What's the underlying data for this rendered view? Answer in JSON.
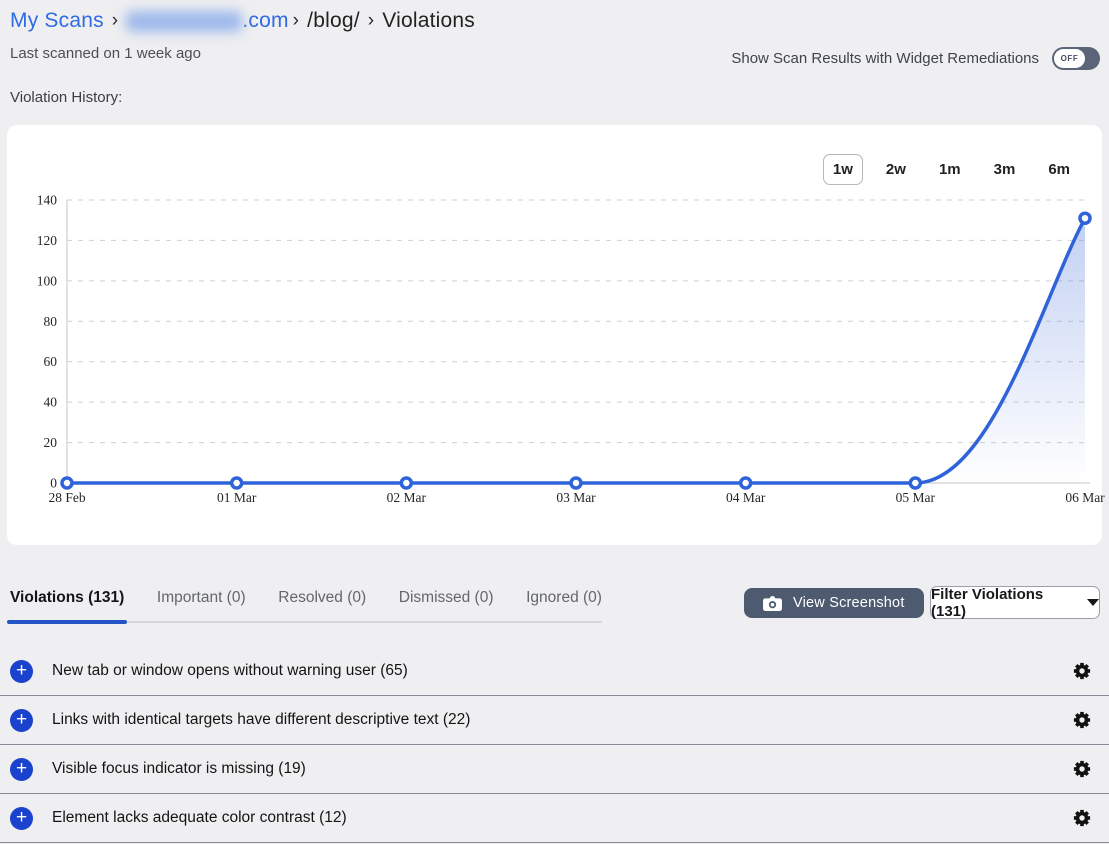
{
  "breadcrumb": {
    "root": "My Scans",
    "separator": "›",
    "domain_suffix": ".com",
    "path_segment": "/blog/",
    "page": "Violations"
  },
  "last_scanned": "Last scanned on 1 week ago",
  "remediation_toggle": {
    "label": "Show Scan Results with Widget Remediations",
    "state": "OFF"
  },
  "section_label": "Violation History:",
  "chart_data": {
    "type": "line",
    "title": "Violation History",
    "x": [
      "28 Feb",
      "01 Mar",
      "02 Mar",
      "03 Mar",
      "04 Mar",
      "05 Mar",
      "06 Mar"
    ],
    "values": [
      0,
      0,
      0,
      0,
      0,
      0,
      131
    ],
    "y_ticks": [
      0,
      20,
      40,
      60,
      80,
      100,
      120,
      140
    ],
    "ylim": [
      0,
      140
    ],
    "xlabel": "",
    "ylabel": "",
    "grid": true,
    "legend": "none",
    "line_color": "#2f63d9",
    "marker_fill": "#ffffff",
    "area_fill_top": "#6e8fe0",
    "range_buttons": [
      "1w",
      "2w",
      "1m",
      "3m",
      "6m"
    ],
    "active_range": "1w"
  },
  "tabs": [
    {
      "label": "Violations (131)",
      "active": true
    },
    {
      "label": "Important (0)",
      "active": false
    },
    {
      "label": "Resolved (0)",
      "active": false
    },
    {
      "label": "Dismissed (0)",
      "active": false
    },
    {
      "label": "Ignored (0)",
      "active": false
    }
  ],
  "actions": {
    "view_screenshot": "View Screenshot",
    "filter_violations": "Filter Violations (131)"
  },
  "violations": [
    "New tab or window opens without warning user (65)",
    "Links with identical targets have different descriptive text (22)",
    "Visible focus indicator is missing (19)",
    "Element lacks adequate color contrast (12)"
  ],
  "colors": {
    "accent_blue": "#2e6be4",
    "plus_blue": "#1a42cd",
    "button_slate": "#4d5a70",
    "page_bg": "#efeff1"
  }
}
